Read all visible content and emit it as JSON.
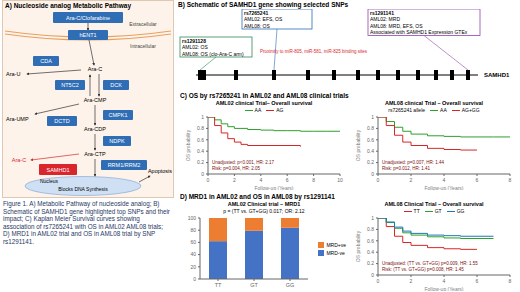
{
  "figure": {
    "panel_a": {
      "title": "A) Nucleoside analog Metabolic Pathway",
      "nodes": {
        "drug": "Ara-C/Clofarabine",
        "hent1": "hENT1",
        "extracellular": "Extracellular",
        "intracellular": "Intracellular",
        "cda": "CDA",
        "ara_u": "Ara-U",
        "ara_c": "Ara-C",
        "nt5c2": "NT5C2",
        "dck": "DCK",
        "ara_cmp": "Ara-CMP",
        "dctd": "DCTD",
        "ara_ump": "Ara-UMP",
        "cmpk1": "CMPK1",
        "ara_cdp": "Ara-CDP",
        "ndpk": "NDPK",
        "ara_ctp": "Ara-CTP",
        "samhd1": "SAMHD1",
        "ara_c_out": "Ara-C",
        "rrm": "RRM1/RRM2",
        "nucleus": "Nucleus",
        "blocks": "Blocks DNA Synthesis",
        "apoptosis": "Apoptosis"
      }
    },
    "panel_b": {
      "title": "B) Schematic of SAMHD1 gene showing selected SNPs",
      "gene": "SAMHD1",
      "note": "Proximity to miR-805, miR-581, miR-825 binding sites",
      "snps": [
        {
          "id": "rs1291128",
          "lines": [
            "AML02: OS",
            "AML08: OS (clo-Ara-C arm)"
          ]
        },
        {
          "id": "rs7265241",
          "lines": [
            "AML02: EFS, OS",
            "AML08: OS"
          ]
        },
        {
          "id": "rs1291141",
          "lines": [
            "AML02: MRD",
            "AML08: MRD, EFS, OS",
            "Associated with SAMHD1 Expression GTEx"
          ]
        }
      ]
    },
    "panel_c": {
      "title": "C) OS by rs7265241 in AML02 and AML08 clinical trials"
    },
    "panel_d": {
      "title": "D) MRD1 in AML02 and OS in AML08 by rs1291141"
    },
    "caption": "Figure 1. A) Metabolic Pathway of nucleoside analog; B) Schematic of SAMHD1 gene highlighted top SNPs and their impact; C) Kaplan Meier Survival curves showing association of rs7265241 with OS in AML02 AML08 trials; D) MRD1 in AML02 trial and OS in AML08 trial by SNP rs1291141."
  },
  "chart_data": [
    {
      "type": "line",
      "title": "AML02 clinical Trial– Overall survival",
      "x_label": "Follow-up (Years)",
      "y_label": "OS probability",
      "line_style": "step",
      "legend": "top",
      "grid": false,
      "xlim": [
        0,
        10
      ],
      "xticks": [
        0,
        2,
        4,
        6,
        8,
        10
      ],
      "ylim": [
        0,
        1
      ],
      "yticks": [
        0,
        0.2,
        0.4,
        0.6,
        0.8,
        1
      ],
      "annotations": [
        "Unadjusted: p<0.001, HR: 2.17",
        "Risk: p=0.004, HR: 2.05"
      ],
      "series": [
        {
          "name": "AA",
          "color": "#2ca02c",
          "x": [
            0,
            0.5,
            1,
            1.5,
            2,
            3,
            4,
            5,
            6,
            7,
            8,
            9,
            10
          ],
          "values": [
            1,
            0.95,
            0.88,
            0.83,
            0.8,
            0.78,
            0.77,
            0.76,
            0.76,
            0.75,
            0.75,
            0.75,
            0.75
          ]
        },
        {
          "name": "AG",
          "color": "#d62728",
          "x": [
            0,
            0.5,
            1,
            1.5,
            2,
            2.5,
            3,
            5,
            7
          ],
          "values": [
            1,
            0.85,
            0.72,
            0.62,
            0.56,
            0.52,
            0.5,
            0.5,
            0.48
          ]
        }
      ]
    },
    {
      "type": "line",
      "title": "AML08 clinical Trial – Overall survival",
      "legend_title": "rs7265241 allele",
      "x_label": "Follow-up (Years)",
      "y_label": "OS probability",
      "line_style": "step",
      "legend": "top",
      "grid": false,
      "xlim": [
        0,
        8
      ],
      "xticks": [
        0,
        2,
        4,
        6,
        8
      ],
      "ylim": [
        0,
        1
      ],
      "yticks": [
        0,
        0.2,
        0.4,
        0.6,
        0.8,
        1
      ],
      "annotations": [
        "Unadjusted: p=0.007, HR: 1.44",
        "Risk: p=0.012, HR: 1.41"
      ],
      "series": [
        {
          "name": "AA",
          "color": "#2ca02c",
          "x": [
            0,
            0.5,
            1,
            1.5,
            2,
            3,
            4,
            5,
            6,
            7,
            8
          ],
          "values": [
            1,
            0.92,
            0.82,
            0.75,
            0.7,
            0.67,
            0.66,
            0.65,
            0.65,
            0.65,
            0.65
          ]
        },
        {
          "name": "AG+GG",
          "color": "#d62728",
          "x": [
            0,
            0.5,
            1,
            1.5,
            2,
            3,
            4,
            5,
            6
          ],
          "values": [
            1,
            0.85,
            0.68,
            0.56,
            0.5,
            0.45,
            0.43,
            0.42,
            0.42
          ]
        }
      ]
    },
    {
      "type": "bar",
      "title": "AML02 Clinical trial – MRD1",
      "stacked": true,
      "legend": "right",
      "grid": false,
      "annotations": [
        "p = (TT vs. GT+GG) 0.017; OR: 2.12"
      ],
      "categories": [
        "TT",
        "GT",
        "GG"
      ],
      "ylim": [
        0,
        100
      ],
      "yticks": [
        0,
        20,
        40,
        60,
        80,
        100
      ],
      "series": [
        {
          "name": "MRD-ve",
          "color": "#4472c4",
          "values": [
            62,
            79,
            84
          ]
        },
        {
          "name": "MRD+ve",
          "color": "#ed7d31",
          "values": [
            38,
            21,
            16
          ]
        }
      ]
    },
    {
      "type": "line",
      "title": "AML08 Clinical Trial – Overall survival",
      "x_label": "Follow-up (Years)",
      "y_label": "OS probability",
      "line_style": "step",
      "legend": "top",
      "grid": false,
      "xlim": [
        0,
        8
      ],
      "xticks": [
        0,
        2,
        4,
        6,
        8
      ],
      "ylim": [
        0,
        1
      ],
      "yticks": [
        0,
        0.2,
        0.4,
        0.6,
        0.8,
        1
      ],
      "annotations": [
        "Unadjusted: (TT vs. GT+GG) p=0.009, HR: 1.55",
        "Risk: (TT vs. GT+GG) p=0.008, HR: 1.45"
      ],
      "series": [
        {
          "name": "TT",
          "color": "#d62728",
          "x": [
            0,
            0.5,
            1,
            1.5,
            2,
            3,
            4,
            5,
            6
          ],
          "values": [
            1,
            0.85,
            0.68,
            0.57,
            0.52,
            0.48,
            0.46,
            0.45,
            0.45
          ]
        },
        {
          "name": "GT",
          "color": "#2ca02c",
          "x": [
            0,
            0.5,
            1,
            1.5,
            2,
            3,
            4,
            5,
            6,
            7
          ],
          "values": [
            1,
            0.92,
            0.82,
            0.74,
            0.7,
            0.67,
            0.65,
            0.64,
            0.64,
            0.64
          ]
        },
        {
          "name": "GG",
          "color": "#1f77b4",
          "x": [
            0,
            0.5,
            1,
            1.5,
            2,
            3,
            4,
            5,
            6,
            7
          ],
          "values": [
            1,
            0.93,
            0.84,
            0.77,
            0.73,
            0.7,
            0.69,
            0.68,
            0.68,
            0.68
          ]
        }
      ]
    }
  ]
}
